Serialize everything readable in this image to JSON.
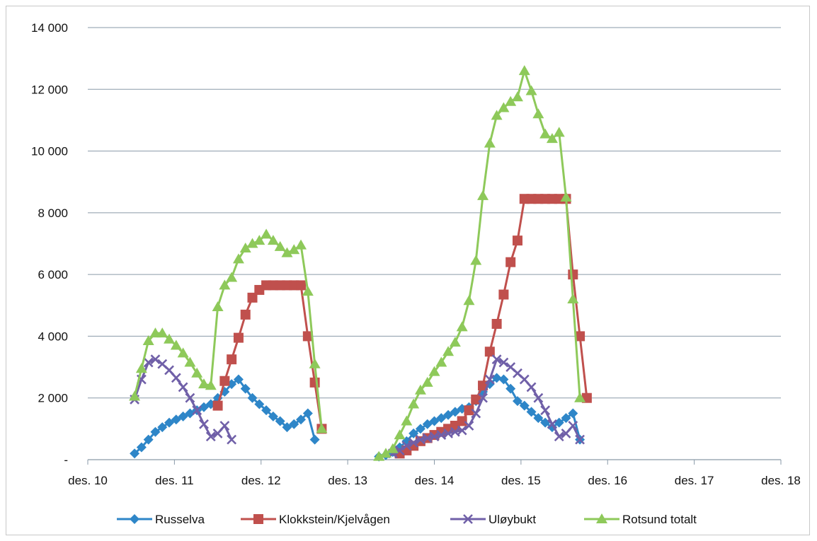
{
  "chart_data": {
    "type": "line",
    "title": "",
    "xlabel": "",
    "ylabel": "",
    "ylim": [
      0,
      14000
    ],
    "xlim": [
      10,
      18
    ],
    "grid": true,
    "legend_position": "bottom",
    "y_ticks": [
      {
        "value": 0,
        "label": "-"
      },
      {
        "value": 2000,
        "label": "2 000"
      },
      {
        "value": 4000,
        "label": "4 000"
      },
      {
        "value": 6000,
        "label": "6 000"
      },
      {
        "value": 8000,
        "label": "8 000"
      },
      {
        "value": 10000,
        "label": "10 000"
      },
      {
        "value": 12000,
        "label": "12 000"
      },
      {
        "value": 14000,
        "label": "14 000"
      }
    ],
    "x_ticks": [
      {
        "value": 10,
        "label": "des. 10"
      },
      {
        "value": 11,
        "label": "des. 11"
      },
      {
        "value": 12,
        "label": "des. 12"
      },
      {
        "value": 13,
        "label": "des. 13"
      },
      {
        "value": 14,
        "label": "des. 14"
      },
      {
        "value": 15,
        "label": "des. 15"
      },
      {
        "value": 16,
        "label": "des. 16"
      },
      {
        "value": 17,
        "label": "des. 17"
      },
      {
        "value": 18,
        "label": "des. 18"
      }
    ],
    "series": [
      {
        "name": "Russelva",
        "color": "#2e86c8",
        "marker": "diamond",
        "segments": [
          [
            [
              10.54,
              200
            ],
            [
              10.62,
              400
            ],
            [
              10.7,
              650
            ],
            [
              10.78,
              900
            ],
            [
              10.86,
              1050
            ],
            [
              10.94,
              1200
            ],
            [
              11.02,
              1300
            ],
            [
              11.1,
              1400
            ],
            [
              11.18,
              1500
            ],
            [
              11.26,
              1600
            ],
            [
              11.34,
              1700
            ],
            [
              11.42,
              1800
            ],
            [
              11.5,
              2000
            ],
            [
              11.58,
              2200
            ],
            [
              11.66,
              2450
            ],
            [
              11.74,
              2600
            ],
            [
              11.82,
              2300
            ],
            [
              11.9,
              2000
            ],
            [
              11.98,
              1800
            ],
            [
              12.06,
              1600
            ],
            [
              12.14,
              1400
            ],
            [
              12.22,
              1250
            ],
            [
              12.3,
              1050
            ],
            [
              12.38,
              1150
            ],
            [
              12.46,
              1300
            ],
            [
              12.54,
              1500
            ],
            [
              12.62,
              650
            ]
          ],
          [
            [
              13.36,
              100
            ],
            [
              13.44,
              150
            ],
            [
              13.52,
              250
            ],
            [
              13.6,
              400
            ],
            [
              13.68,
              600
            ],
            [
              13.76,
              850
            ],
            [
              13.84,
              1000
            ],
            [
              13.92,
              1150
            ],
            [
              14.0,
              1250
            ],
            [
              14.08,
              1350
            ],
            [
              14.16,
              1450
            ],
            [
              14.24,
              1550
            ],
            [
              14.32,
              1650
            ],
            [
              14.4,
              1700
            ],
            [
              14.48,
              1900
            ],
            [
              14.56,
              2200
            ],
            [
              14.64,
              2450
            ],
            [
              14.72,
              2650
            ],
            [
              14.8,
              2600
            ],
            [
              14.88,
              2300
            ],
            [
              14.96,
              1900
            ],
            [
              15.04,
              1750
            ],
            [
              15.12,
              1550
            ],
            [
              15.2,
              1350
            ],
            [
              15.28,
              1200
            ],
            [
              15.36,
              1050
            ],
            [
              15.44,
              1200
            ],
            [
              15.52,
              1350
            ],
            [
              15.6,
              1500
            ],
            [
              15.68,
              650
            ]
          ]
        ]
      },
      {
        "name": "Klokkstein/Kjelvågen",
        "color": "#c0504d",
        "marker": "square",
        "segments": [
          [
            [
              11.5,
              1750
            ],
            [
              11.58,
              2550
            ],
            [
              11.66,
              3250
            ],
            [
              11.74,
              3950
            ],
            [
              11.82,
              4700
            ],
            [
              11.9,
              5250
            ],
            [
              11.98,
              5500
            ],
            [
              12.06,
              5650
            ],
            [
              12.14,
              5650
            ],
            [
              12.22,
              5650
            ],
            [
              12.3,
              5650
            ],
            [
              12.38,
              5650
            ],
            [
              12.46,
              5650
            ],
            [
              12.54,
              4000
            ],
            [
              12.62,
              2500
            ],
            [
              12.7,
              1000
            ]
          ],
          [
            [
              13.6,
              200
            ],
            [
              13.68,
              300
            ],
            [
              13.76,
              450
            ],
            [
              13.84,
              600
            ],
            [
              13.92,
              700
            ],
            [
              14.0,
              800
            ],
            [
              14.08,
              900
            ],
            [
              14.16,
              1000
            ],
            [
              14.24,
              1100
            ],
            [
              14.32,
              1250
            ],
            [
              14.4,
              1600
            ],
            [
              14.48,
              1950
            ],
            [
              14.56,
              2400
            ],
            [
              14.64,
              3500
            ],
            [
              14.72,
              4400
            ],
            [
              14.8,
              5350
            ],
            [
              14.88,
              6400
            ],
            [
              14.96,
              7100
            ],
            [
              15.04,
              8450
            ],
            [
              15.12,
              8450
            ],
            [
              15.2,
              8450
            ],
            [
              15.28,
              8450
            ],
            [
              15.36,
              8450
            ],
            [
              15.44,
              8450
            ],
            [
              15.52,
              8450
            ],
            [
              15.6,
              6000
            ],
            [
              15.68,
              4000
            ],
            [
              15.76,
              2000
            ]
          ]
        ]
      },
      {
        "name": "Uløybukt",
        "color": "#7060a8",
        "marker": "x",
        "segments": [
          [
            [
              10.54,
              1950
            ],
            [
              10.62,
              2600
            ],
            [
              10.7,
              3150
            ],
            [
              10.78,
              3250
            ],
            [
              10.86,
              3100
            ],
            [
              10.94,
              2900
            ],
            [
              11.02,
              2650
            ],
            [
              11.1,
              2350
            ],
            [
              11.18,
              2000
            ],
            [
              11.26,
              1600
            ],
            [
              11.34,
              1150
            ],
            [
              11.42,
              750
            ],
            [
              11.5,
              850
            ],
            [
              11.58,
              1100
            ],
            [
              11.66,
              650
            ]
          ],
          [
            [
              13.52,
              200
            ],
            [
              13.6,
              300
            ],
            [
              13.68,
              450
            ],
            [
              13.76,
              550
            ],
            [
              13.84,
              650
            ],
            [
              13.92,
              700
            ],
            [
              14.0,
              750
            ],
            [
              14.08,
              800
            ],
            [
              14.16,
              850
            ],
            [
              14.24,
              900
            ],
            [
              14.32,
              950
            ],
            [
              14.4,
              1100
            ],
            [
              14.48,
              1500
            ],
            [
              14.56,
              2000
            ],
            [
              14.64,
              2600
            ],
            [
              14.72,
              3250
            ],
            [
              14.8,
              3150
            ],
            [
              14.88,
              3000
            ],
            [
              14.96,
              2800
            ],
            [
              15.04,
              2600
            ],
            [
              15.12,
              2350
            ],
            [
              15.2,
              2000
            ],
            [
              15.28,
              1600
            ],
            [
              15.36,
              1150
            ],
            [
              15.44,
              750
            ],
            [
              15.52,
              850
            ],
            [
              15.6,
              1100
            ],
            [
              15.68,
              650
            ]
          ]
        ]
      },
      {
        "name": "Rotsund totalt",
        "color": "#8ec95a",
        "marker": "triangle",
        "segments": [
          [
            [
              10.54,
              2050
            ],
            [
              10.62,
              2950
            ],
            [
              10.7,
              3850
            ],
            [
              10.78,
              4100
            ],
            [
              10.86,
              4100
            ],
            [
              10.94,
              3900
            ],
            [
              11.02,
              3700
            ],
            [
              11.1,
              3450
            ],
            [
              11.18,
              3150
            ],
            [
              11.26,
              2800
            ],
            [
              11.34,
              2450
            ],
            [
              11.42,
              2400
            ],
            [
              11.5,
              4950
            ],
            [
              11.58,
              5650
            ],
            [
              11.66,
              5900
            ],
            [
              11.74,
              6500
            ],
            [
              11.82,
              6850
            ],
            [
              11.9,
              7000
            ],
            [
              11.98,
              7100
            ],
            [
              12.06,
              7300
            ],
            [
              12.14,
              7100
            ],
            [
              12.22,
              6900
            ],
            [
              12.3,
              6700
            ],
            [
              12.38,
              6800
            ],
            [
              12.46,
              6950
            ],
            [
              12.54,
              5450
            ],
            [
              12.62,
              3100
            ],
            [
              12.7,
              1000
            ]
          ],
          [
            [
              13.36,
              100
            ],
            [
              13.44,
              200
            ],
            [
              13.52,
              350
            ],
            [
              13.6,
              800
            ],
            [
              13.68,
              1250
            ],
            [
              13.76,
              1800
            ],
            [
              13.84,
              2250
            ],
            [
              13.92,
              2500
            ],
            [
              14.0,
              2850
            ],
            [
              14.08,
              3150
            ],
            [
              14.16,
              3500
            ],
            [
              14.24,
              3800
            ],
            [
              14.32,
              4300
            ],
            [
              14.4,
              5150
            ],
            [
              14.48,
              6450
            ],
            [
              14.56,
              8550
            ],
            [
              14.64,
              10250
            ],
            [
              14.72,
              11150
            ],
            [
              14.8,
              11400
            ],
            [
              14.88,
              11600
            ],
            [
              14.96,
              11750
            ],
            [
              15.04,
              12600
            ],
            [
              15.12,
              11950
            ],
            [
              15.2,
              11200
            ],
            [
              15.28,
              10550
            ],
            [
              15.36,
              10400
            ],
            [
              15.44,
              10600
            ],
            [
              15.52,
              8500
            ],
            [
              15.6,
              5200
            ],
            [
              15.68,
              2000
            ]
          ]
        ]
      }
    ]
  }
}
